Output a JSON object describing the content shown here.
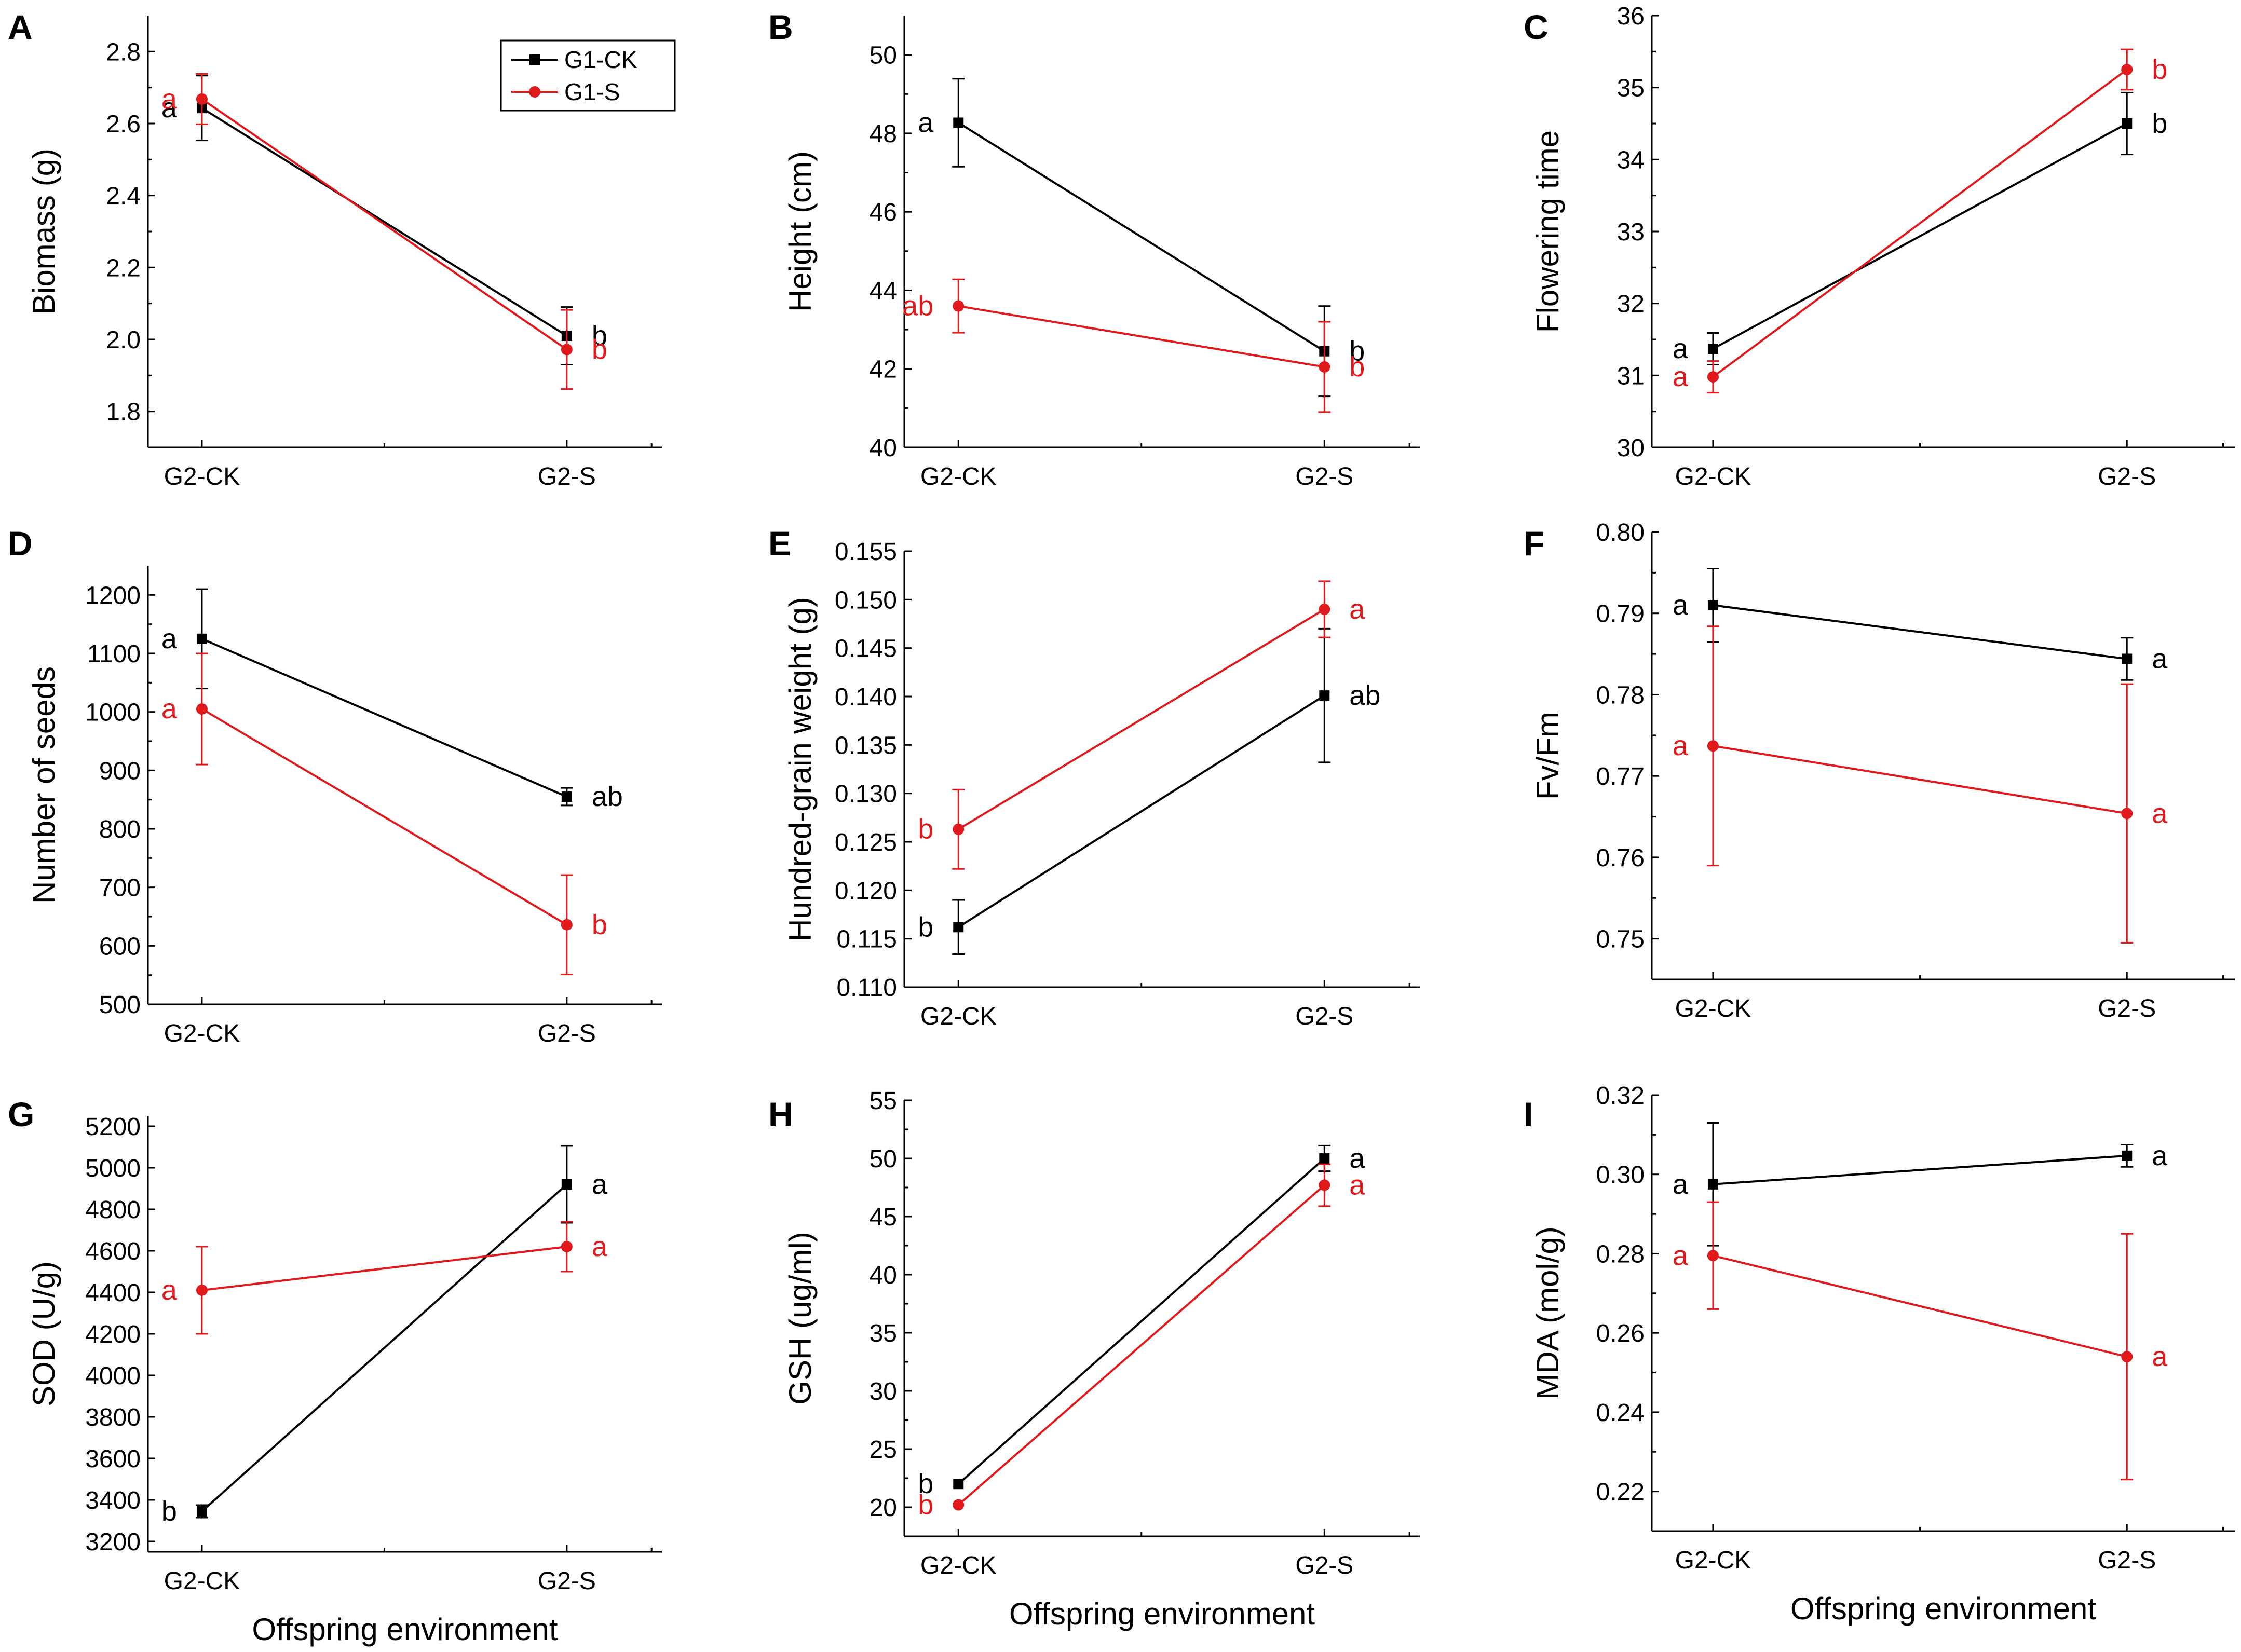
{
  "colors": {
    "g1ck": "#000000",
    "g1s": "#e0191d"
  },
  "legend": [
    {
      "label": "G1-CK",
      "series": "g1ck",
      "marker": "square"
    },
    {
      "label": "G1-S",
      "series": "g1s",
      "marker": "circle"
    }
  ],
  "shared_xlabel": "Offspring environment",
  "chart_data": [
    {
      "panel": "A",
      "type": "line",
      "ylabel": "Biomass (g)",
      "categories": [
        "G2-CK",
        "G2-S"
      ],
      "ylim": [
        1.7,
        2.9
      ],
      "yticks": [
        1.8,
        2.0,
        2.2,
        2.4,
        2.6,
        2.8
      ],
      "ytick_labels": [
        "1.8",
        "2.0",
        "2.2",
        "2.4",
        "2.6",
        "2.8"
      ],
      "minor": true,
      "show_legend": true,
      "show_xlabel": false,
      "series": [
        {
          "name": "G1-CK",
          "key": "g1ck",
          "values": [
            2.643,
            2.01
          ],
          "errors": [
            0.09,
            0.08
          ],
          "letters": [
            "a",
            "b"
          ]
        },
        {
          "name": "G1-S",
          "key": "g1s",
          "values": [
            2.668,
            1.972
          ],
          "errors": [
            0.07,
            0.11
          ],
          "letters": [
            "a",
            "b"
          ]
        }
      ]
    },
    {
      "panel": "B",
      "type": "line",
      "ylabel": "Height (cm)",
      "categories": [
        "G2-CK",
        "G2-S"
      ],
      "ylim": [
        40,
        51
      ],
      "yticks": [
        40,
        42,
        44,
        46,
        48,
        50
      ],
      "ytick_labels": [
        "40",
        "42",
        "44",
        "46",
        "48",
        "50"
      ],
      "minor": true,
      "show_legend": false,
      "show_xlabel": false,
      "series": [
        {
          "name": "G1-CK",
          "key": "g1ck",
          "values": [
            48.27,
            42.45
          ],
          "errors": [
            1.12,
            1.15
          ],
          "letters": [
            "a",
            "b"
          ]
        },
        {
          "name": "G1-S",
          "key": "g1s",
          "values": [
            43.6,
            42.05
          ],
          "errors": [
            0.68,
            1.15
          ],
          "letters": [
            "ab",
            "b"
          ]
        }
      ]
    },
    {
      "panel": "C",
      "type": "line",
      "ylabel": "Flowering time",
      "categories": [
        "G2-CK",
        "G2-S"
      ],
      "ylim": [
        30,
        36
      ],
      "yticks": [
        30,
        31,
        32,
        33,
        34,
        35,
        36
      ],
      "ytick_labels": [
        "30",
        "31",
        "32",
        "33",
        "34",
        "35",
        "36"
      ],
      "minor": true,
      "show_legend": false,
      "show_xlabel": false,
      "series": [
        {
          "name": "G1-CK",
          "key": "g1ck",
          "values": [
            31.37,
            34.5
          ],
          "errors": [
            0.22,
            0.43
          ],
          "letters": [
            "a",
            "b"
          ]
        },
        {
          "name": "G1-S",
          "key": "g1s",
          "values": [
            30.98,
            35.25
          ],
          "errors": [
            0.22,
            0.28
          ],
          "letters": [
            "a",
            "b"
          ]
        }
      ]
    },
    {
      "panel": "D",
      "type": "line",
      "ylabel": "Number of seeds",
      "categories": [
        "G2-CK",
        "G2-S"
      ],
      "ylim": [
        500,
        1250
      ],
      "yticks": [
        500,
        600,
        700,
        800,
        900,
        1000,
        1100,
        1200
      ],
      "ytick_labels": [
        "500",
        "600",
        "700",
        "800",
        "900",
        "1000",
        "1100",
        "1200"
      ],
      "minor": true,
      "show_legend": false,
      "show_xlabel": false,
      "series": [
        {
          "name": "G1-CK",
          "key": "g1ck",
          "values": [
            1125,
            855
          ],
          "errors": [
            85,
            15
          ],
          "letters": [
            "a",
            "ab"
          ]
        },
        {
          "name": "G1-S",
          "key": "g1s",
          "values": [
            1005,
            636
          ],
          "errors": [
            95,
            85
          ],
          "letters": [
            "a",
            "b"
          ]
        }
      ]
    },
    {
      "panel": "E",
      "type": "line",
      "ylabel": "Hundred-grain weight (g)",
      "categories": [
        "G2-CK",
        "G2-S"
      ],
      "ylim": [
        0.11,
        0.155
      ],
      "yticks": [
        0.11,
        0.115,
        0.12,
        0.125,
        0.13,
        0.135,
        0.14,
        0.145,
        0.15,
        0.155
      ],
      "ytick_labels": [
        "0.110",
        "0.115",
        "0.120",
        "0.125",
        "0.130",
        "0.135",
        "0.140",
        "0.145",
        "0.150",
        "0.155"
      ],
      "minor": false,
      "show_legend": false,
      "show_xlabel": false,
      "series": [
        {
          "name": "G1-CK",
          "key": "g1ck",
          "values": [
            0.1162,
            0.1401
          ],
          "errors": [
            0.0028,
            0.0069
          ],
          "letters": [
            "b",
            "ab"
          ]
        },
        {
          "name": "G1-S",
          "key": "g1s",
          "values": [
            0.1263,
            0.149
          ],
          "errors": [
            0.0041,
            0.0029
          ],
          "letters": [
            "b",
            "a"
          ]
        }
      ]
    },
    {
      "panel": "F",
      "type": "line",
      "ylabel": "Fv/Fm",
      "categories": [
        "G2-CK",
        "G2-S"
      ],
      "ylim": [
        0.745,
        0.8
      ],
      "yticks": [
        0.75,
        0.76,
        0.77,
        0.78,
        0.79,
        0.8
      ],
      "ytick_labels": [
        "0.75",
        "0.76",
        "0.77",
        "0.78",
        "0.79",
        "0.80"
      ],
      "minor": true,
      "show_legend": false,
      "show_xlabel": false,
      "series": [
        {
          "name": "G1-CK",
          "key": "g1ck",
          "values": [
            0.791,
            0.7844
          ],
          "errors": [
            0.0045,
            0.0026
          ],
          "letters": [
            "a",
            "a"
          ]
        },
        {
          "name": "G1-S",
          "key": "g1s",
          "values": [
            0.7737,
            0.7654
          ],
          "errors": [
            0.0147,
            0.0159
          ],
          "letters": [
            "a",
            "a"
          ]
        }
      ]
    },
    {
      "panel": "G",
      "type": "line",
      "ylabel": "SOD (U/g)",
      "categories": [
        "G2-CK",
        "G2-S"
      ],
      "ylim": [
        3150,
        5250
      ],
      "yticks": [
        3200,
        3400,
        3600,
        3800,
        4000,
        4200,
        4400,
        4600,
        4800,
        5000,
        5200
      ],
      "ytick_labels": [
        "3200",
        "3400",
        "3600",
        "3800",
        "4000",
        "4200",
        "4400",
        "4600",
        "4800",
        "5000",
        "5200"
      ],
      "minor": false,
      "show_legend": false,
      "show_xlabel": true,
      "series": [
        {
          "name": "G1-CK",
          "key": "g1ck",
          "values": [
            3345,
            4920
          ],
          "errors": [
            30,
            185
          ],
          "letters": [
            "b",
            "a"
          ]
        },
        {
          "name": "G1-S",
          "key": "g1s",
          "values": [
            4410,
            4620
          ],
          "errors": [
            210,
            120
          ],
          "letters": [
            "a",
            "a"
          ]
        }
      ]
    },
    {
      "panel": "H",
      "type": "line",
      "ylabel": "GSH (ug/ml)",
      "categories": [
        "G2-CK",
        "G2-S"
      ],
      "ylim": [
        17.5,
        55
      ],
      "yticks": [
        20,
        25,
        30,
        35,
        40,
        45,
        50,
        55
      ],
      "ytick_labels": [
        "20",
        "25",
        "30",
        "35",
        "40",
        "45",
        "50",
        "55"
      ],
      "minor": true,
      "show_legend": false,
      "show_xlabel": true,
      "series": [
        {
          "name": "G1-CK",
          "key": "g1ck",
          "values": [
            22.0,
            50.0
          ],
          "errors": [
            0,
            1.1
          ],
          "letters": [
            "b",
            "a"
          ]
        },
        {
          "name": "G1-S",
          "key": "g1s",
          "values": [
            20.2,
            47.7
          ],
          "errors": [
            0,
            1.8
          ],
          "letters": [
            "b",
            "a"
          ]
        }
      ]
    },
    {
      "panel": "I",
      "type": "line",
      "ylabel": "MDA (mol/g)",
      "categories": [
        "G2-CK",
        "G2-S"
      ],
      "ylim": [
        0.21,
        0.32
      ],
      "yticks": [
        0.22,
        0.24,
        0.26,
        0.28,
        0.3,
        0.32
      ],
      "ytick_labels": [
        "0.22",
        "0.24",
        "0.26",
        "0.28",
        "0.30",
        "0.32"
      ],
      "minor": true,
      "show_legend": false,
      "show_xlabel": true,
      "series": [
        {
          "name": "G1-CK",
          "key": "g1ck",
          "values": [
            0.2975,
            0.3047
          ],
          "errors": [
            0.0155,
            0.0028
          ],
          "letters": [
            "a",
            "a"
          ]
        },
        {
          "name": "G1-S",
          "key": "g1s",
          "values": [
            0.2795,
            0.254
          ],
          "errors": [
            0.0135,
            0.031
          ],
          "letters": [
            "a",
            "a"
          ]
        }
      ]
    }
  ]
}
